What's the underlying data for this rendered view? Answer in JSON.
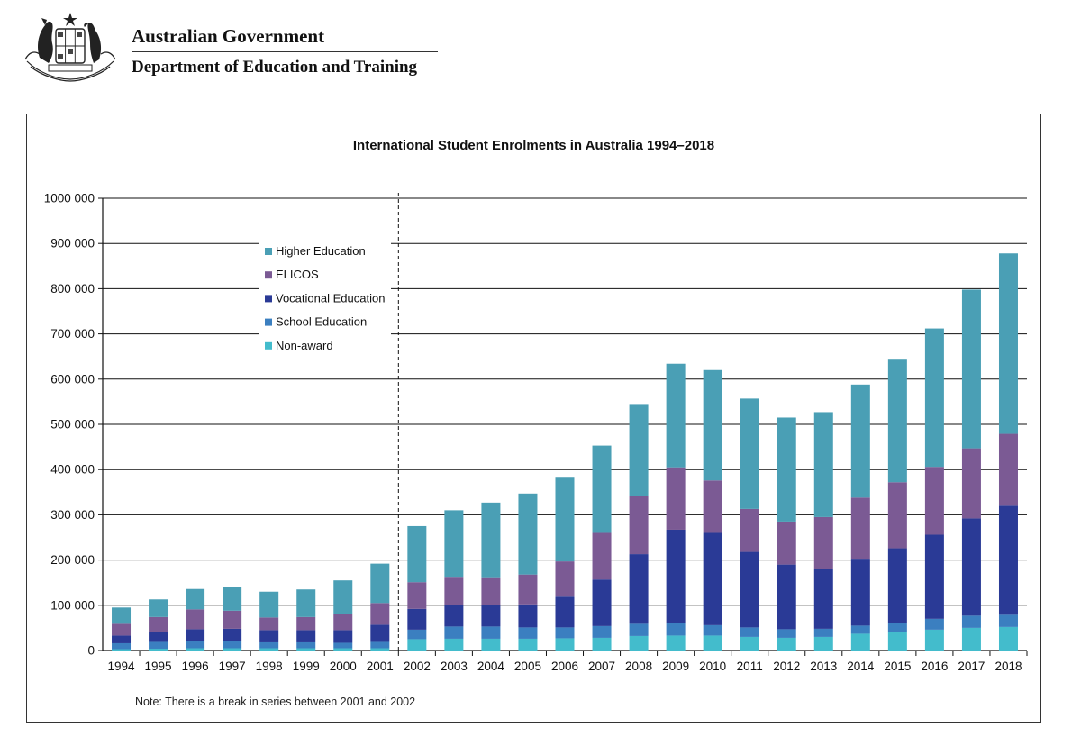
{
  "header": {
    "org": "Australian Government",
    "department": "Department of Education and Training"
  },
  "colors": {
    "higher_education": "#4a9fb5",
    "elicos": "#7b5a94",
    "vocational_education": "#2a3a96",
    "school_education": "#3b7fc0",
    "non_award": "#43bccc"
  },
  "chart_data": {
    "type": "bar",
    "stacked": true,
    "title": "International Student Enrolments in Australia 1994–2018",
    "xlabel": "",
    "ylabel": "",
    "ylim": [
      0,
      1000000
    ],
    "yticks": [
      {
        "value": 0,
        "label": "0"
      },
      {
        "value": 100000,
        "label": "100 000"
      },
      {
        "value": 200000,
        "label": "200 000"
      },
      {
        "value": 300000,
        "label": "300 000"
      },
      {
        "value": 400000,
        "label": "400 000"
      },
      {
        "value": 500000,
        "label": "500 000"
      },
      {
        "value": 600000,
        "label": "600 000"
      },
      {
        "value": 700000,
        "label": "700 000"
      },
      {
        "value": 800000,
        "label": "800 000"
      },
      {
        "value": 900000,
        "label": "900 000"
      },
      {
        "value": 1000000,
        "label": "1000 000"
      }
    ],
    "grid": true,
    "legend_position": "top-left",
    "break_after_category": "2001",
    "categories": [
      "1994",
      "1995",
      "1996",
      "1997",
      "1998",
      "1999",
      "2000",
      "2001",
      "2002",
      "2003",
      "2004",
      "2005",
      "2006",
      "2007",
      "2008",
      "2009",
      "2010",
      "2011",
      "2012",
      "2013",
      "2014",
      "2015",
      "2016",
      "2017",
      "2018"
    ],
    "series": [
      {
        "name": "Non-award",
        "color_key": "non_award",
        "values": [
          3000,
          4000,
          5000,
          5000,
          5000,
          5000,
          5000,
          5000,
          25000,
          26000,
          26000,
          26000,
          27000,
          28000,
          32000,
          33000,
          33000,
          30000,
          28000,
          30000,
          37000,
          41000,
          46000,
          50000,
          52000
        ]
      },
      {
        "name": "School Education",
        "color_key": "school_education",
        "values": [
          13000,
          15000,
          15000,
          16000,
          13000,
          13000,
          12000,
          14000,
          21000,
          27000,
          27000,
          25000,
          24000,
          26000,
          27000,
          27000,
          23000,
          21000,
          19000,
          18000,
          18000,
          19000,
          24000,
          27000,
          27000
        ]
      },
      {
        "name": "Vocational Education",
        "color_key": "vocational_education",
        "values": [
          17000,
          21000,
          27000,
          27000,
          27000,
          27000,
          28000,
          38000,
          46000,
          47000,
          47000,
          51000,
          68000,
          103000,
          154000,
          207000,
          204000,
          167000,
          143000,
          132000,
          148000,
          166000,
          186000,
          215000,
          241000
        ]
      },
      {
        "name": "ELICOS",
        "color_key": "elicos",
        "values": [
          26000,
          34000,
          44000,
          40000,
          28000,
          29000,
          36000,
          48000,
          59000,
          63000,
          62000,
          66000,
          78000,
          103000,
          129000,
          138000,
          116000,
          95000,
          95000,
          115000,
          135000,
          146000,
          150000,
          155000,
          159000
        ]
      },
      {
        "name": "Higher Education",
        "color_key": "higher_education",
        "values": [
          36000,
          39000,
          45000,
          52000,
          57000,
          61000,
          74000,
          87000,
          124000,
          147000,
          165000,
          179000,
          187000,
          193000,
          203000,
          229000,
          244000,
          244000,
          230000,
          232000,
          250000,
          271000,
          306000,
          351000,
          399000
        ]
      }
    ],
    "legend_order": [
      "Higher Education",
      "ELICOS",
      "Vocational Education",
      "School Education",
      "Non-award"
    ],
    "note": "Note: There is a break in series between 2001 and 2002"
  }
}
